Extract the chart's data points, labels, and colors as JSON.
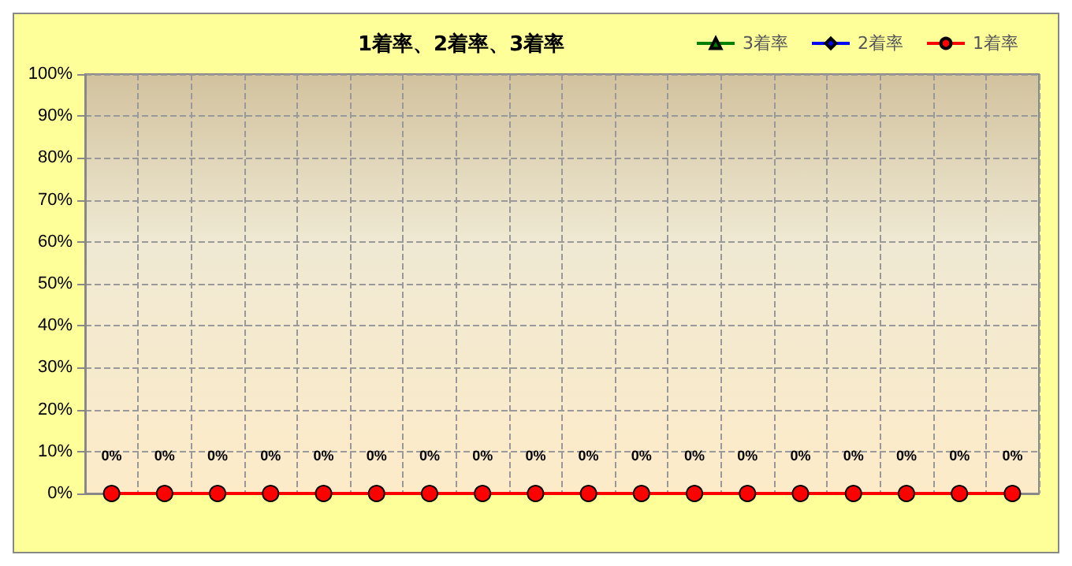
{
  "chart_data": {
    "type": "line",
    "title": "1着率、2着率、3着率",
    "categories": [
      null,
      null,
      null,
      null,
      null,
      null,
      null,
      null,
      null,
      null,
      null,
      null,
      null,
      null,
      null,
      null,
      null,
      null
    ],
    "series": [
      {
        "name": "3着率",
        "color": "#008000",
        "marker": "triangle",
        "values": [
          null,
          null,
          null,
          null,
          null,
          null,
          null,
          null,
          null,
          null,
          null,
          null,
          null,
          null,
          null,
          null,
          null,
          null
        ]
      },
      {
        "name": "2着率",
        "color": "#0000ff",
        "marker": "diamond",
        "values": [
          null,
          null,
          null,
          null,
          null,
          null,
          null,
          null,
          null,
          null,
          null,
          null,
          null,
          null,
          null,
          null,
          null,
          null
        ]
      },
      {
        "name": "1着率",
        "color": "#ff0000",
        "marker": "circle",
        "values": [
          0,
          0,
          0,
          0,
          0,
          0,
          0,
          0,
          0,
          0,
          0,
          0,
          0,
          0,
          0,
          0,
          0,
          0
        ],
        "value_labels": [
          "0%",
          "0%",
          "0%",
          "0%",
          "0%",
          "0%",
          "0%",
          "0%",
          "0%",
          "0%",
          "0%",
          "0%",
          "0%",
          "0%",
          "0%",
          "0%",
          "0%",
          "0%"
        ]
      }
    ],
    "ylim": [
      0,
      100
    ],
    "yticks": [
      {
        "value": 0,
        "label": "0%"
      },
      {
        "value": 10,
        "label": "10%"
      },
      {
        "value": 20,
        "label": "20%"
      },
      {
        "value": 30,
        "label": "30%"
      },
      {
        "value": 40,
        "label": "40%"
      },
      {
        "value": 50,
        "label": "50%"
      },
      {
        "value": 60,
        "label": "60%"
      },
      {
        "value": 70,
        "label": "70%"
      },
      {
        "value": 80,
        "label": "80%"
      },
      {
        "value": 90,
        "label": "90%"
      },
      {
        "value": 100,
        "label": "100%"
      }
    ],
    "grid": true,
    "legend": "top right",
    "line_style": "solid"
  }
}
